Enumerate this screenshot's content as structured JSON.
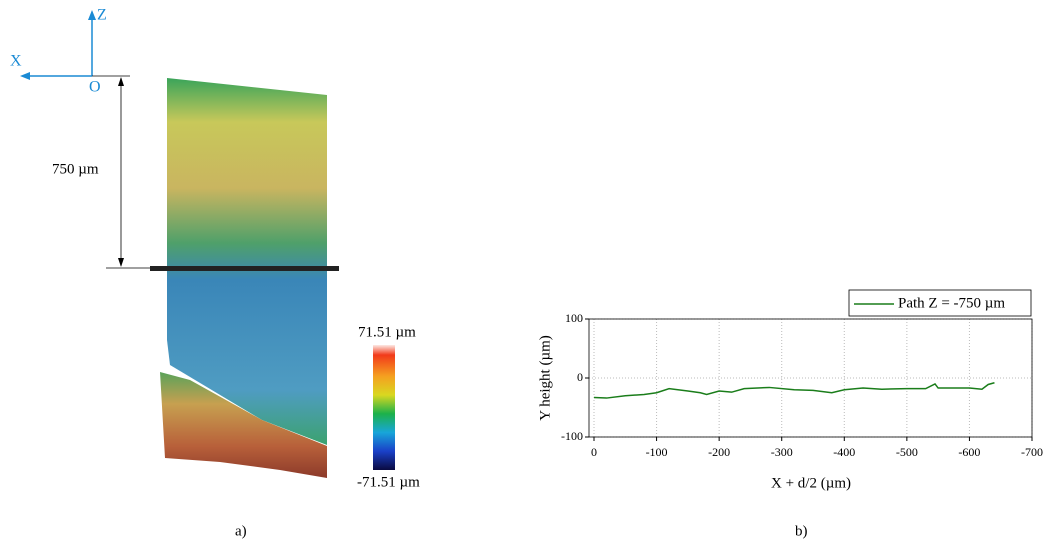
{
  "panel_a": {
    "axis_z": "Z",
    "axis_x": "X",
    "origin": "O",
    "dimension": "750 µm",
    "colorbar_max": "71.51 µm",
    "colorbar_min": "-71.51 µm",
    "caption": "a)"
  },
  "chart_data": {
    "type": "line",
    "caption": "b)",
    "x_label": "X + d/2 (µm)",
    "y_label": "Y height (µm)",
    "x": [
      0,
      -20,
      -50,
      -80,
      -100,
      -120,
      -150,
      -170,
      -180,
      -200,
      -220,
      -240,
      -280,
      -320,
      -350,
      -380,
      -400,
      -430,
      -460,
      -500,
      -530,
      -545,
      -550,
      -600,
      -620,
      -630,
      -640
    ],
    "series": [
      {
        "name": "Path Z = -750 µm",
        "color": "#1a7d1a",
        "values": [
          -33,
          -34,
          -30,
          -28,
          -25,
          -18,
          -22,
          -25,
          -28,
          -22,
          -24,
          -18,
          -16,
          -20,
          -21,
          -25,
          -20,
          -17,
          -19,
          -18,
          -18,
          -10,
          -17,
          -17,
          -19,
          -11,
          -8
        ]
      }
    ],
    "xlim": [
      8,
      -700
    ],
    "xticks": [
      0,
      -100,
      -200,
      -300,
      -400,
      -500,
      -600,
      -700
    ],
    "ylim": [
      -100,
      100
    ],
    "yticks": [
      -100,
      0,
      100
    ],
    "grid": true
  }
}
